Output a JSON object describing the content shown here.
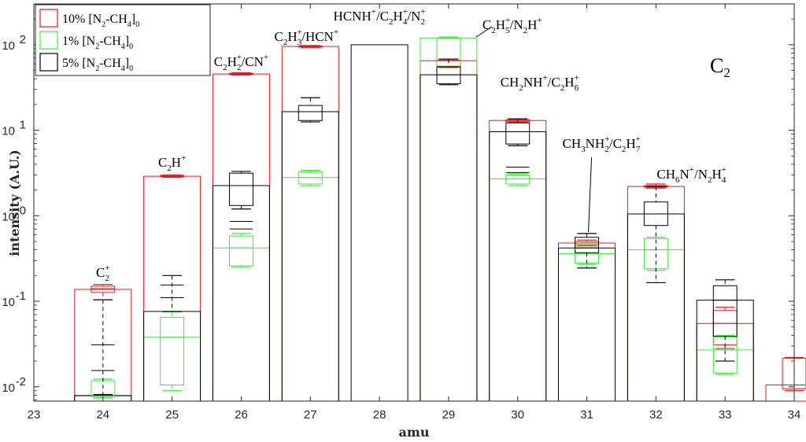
{
  "chart_data": {
    "type": "bar",
    "title": "",
    "panel_label": "C",
    "panel_label_sub": "2",
    "xlabel": "amu",
    "ylabel": "intensity (A.U.)",
    "xlim": [
      23,
      34
    ],
    "ylim": [
      0.0068,
      300
    ],
    "yscale": "log",
    "x_ticks": [
      "23",
      "24",
      "25",
      "26",
      "27",
      "28",
      "29",
      "30",
      "31",
      "32",
      "33",
      "34"
    ],
    "y_ticks": [
      {
        "value": 0.01,
        "base": "10",
        "exp": "-2"
      },
      {
        "value": 0.1,
        "base": "10",
        "exp": "-1"
      },
      {
        "value": 1,
        "base": "10",
        "exp": "0"
      },
      {
        "value": 10,
        "base": "10",
        "exp": "1"
      },
      {
        "value": 100,
        "base": "10",
        "exp": "2"
      }
    ],
    "grid": false,
    "legend_position": "top-left",
    "series": [
      {
        "name": "10% [N2-CH4]0",
        "legend": [
          {
            "t": "10% [N"
          },
          {
            "t": "2",
            "sub": true
          },
          {
            "t": "-CH"
          },
          {
            "t": "4",
            "sub": true
          },
          {
            "t": "]"
          },
          {
            "t": "0",
            "sub": true
          }
        ],
        "color": "#e8171c",
        "bars": [
          {
            "amu": 24,
            "value": 0.138,
            "box": [
              0.127,
              0.15
            ],
            "whisker": [
              0.104,
              0.157
            ],
            "median": 0.14
          },
          {
            "amu": 25,
            "value": 2.9,
            "box": [
              2.86,
              2.97
            ],
            "whisker": [
              2.82,
              3.0
            ],
            "median": 2.91
          },
          {
            "amu": 26,
            "value": 45.5,
            "box": [
              44.8,
              46.3
            ],
            "whisker": [
              44.2,
              47.0
            ],
            "median": 45.5
          },
          {
            "amu": 27,
            "value": 95.5,
            "box": [
              94.0,
              97.0
            ],
            "whisker": [
              93.0,
              98.0
            ],
            "median": 95.5
          },
          {
            "amu": 29,
            "value": 65,
            "box": [
              55,
              66
            ],
            "whisker": [
              54,
              68
            ],
            "median": 56
          },
          {
            "amu": 30,
            "value": 13.0,
            "box": [
              12.6,
              13.3
            ],
            "whisker": [
              12.4,
              13.6
            ],
            "median": 13.0
          },
          {
            "amu": 31,
            "value": 0.48,
            "box": [
              0.46,
              0.5
            ],
            "whisker": [
              0.45,
              0.52
            ],
            "median": 0.48
          },
          {
            "amu": 32,
            "value": 2.2,
            "box": [
              2.15,
              2.25
            ],
            "whisker": [
              2.1,
              2.35
            ],
            "median": 2.2
          },
          {
            "amu": 33,
            "value": 0.055,
            "box": [
              0.031,
              0.078
            ],
            "whisker": [
              0.028,
              0.085
            ],
            "median": 0.055
          },
          {
            "amu": 34,
            "value": 0.0105,
            "box": [
              0.0095,
              0.0215
            ],
            "whisker": [
              0.009,
              0.022
            ],
            "median": 0.0105
          }
        ]
      },
      {
        "name": "1% [N2-CH4]0",
        "legend": [
          {
            "t": "1% [N"
          },
          {
            "t": "2",
            "sub": true
          },
          {
            "t": "-CH"
          },
          {
            "t": "4",
            "sub": true
          },
          {
            "t": "]"
          },
          {
            "t": "0",
            "sub": true
          }
        ],
        "color": "#3ce83c",
        "bars": [
          {
            "amu": 24,
            "value": 0.0078,
            "box": [
              0.0076,
              0.0118
            ],
            "whisker": [
              0.0074,
              0.0123
            ],
            "median": 0.0078
          },
          {
            "amu": 25,
            "value": 0.038,
            "box": [
              0.0105,
              0.065
            ],
            "whisker": [
              0.009,
              0.075
            ],
            "median": 0.038
          },
          {
            "amu": 26,
            "value": 0.42,
            "box": [
              0.26,
              0.58
            ],
            "whisker": [
              0.25,
              0.62
            ],
            "median": 0.42
          },
          {
            "amu": 27,
            "value": 2.8,
            "box": [
              2.35,
              3.25
            ],
            "whisker": [
              2.25,
              3.4
            ],
            "median": 2.8
          },
          {
            "amu": 29,
            "value": 120,
            "box": [
              55,
              120
            ],
            "whisker": [
              54,
              123
            ],
            "median": 120
          },
          {
            "amu": 30,
            "value": 2.7,
            "box": [
              2.35,
              3.0
            ],
            "whisker": [
              2.25,
              3.1
            ],
            "median": 2.7
          },
          {
            "amu": 31,
            "value": 0.36,
            "box": [
              0.28,
              0.44
            ],
            "whisker": [
              0.27,
              0.46
            ],
            "median": 0.36
          },
          {
            "amu": 32,
            "value": 0.4,
            "box": [
              0.24,
              0.54
            ],
            "whisker": [
              0.23,
              0.56
            ],
            "median": 0.4
          },
          {
            "amu": 33,
            "value": 0.027,
            "box": [
              0.0145,
              0.038
            ],
            "whisker": [
              0.014,
              0.04
            ],
            "median": 0.027
          }
        ]
      },
      {
        "name": "5% [N2-CH4]0",
        "legend": [
          {
            "t": "5% [N"
          },
          {
            "t": "2",
            "sub": true
          },
          {
            "t": "-CH"
          },
          {
            "t": "4",
            "sub": true
          },
          {
            "t": "]"
          },
          {
            "t": "0",
            "sub": true
          }
        ],
        "color": "#000000",
        "bars": [
          {
            "amu": 24,
            "value": 0.0079,
            "box": null,
            "whisker": [
              0.0081,
              0.104
            ],
            "median": 0.0079,
            "dashes": [
              0.0155,
              0.031
            ]
          },
          {
            "amu": 25,
            "value": 0.076,
            "box": null,
            "whisker": [
              0.076,
              0.2
            ],
            "median": 0.076,
            "dashes": [
              0.11,
              0.155
            ]
          },
          {
            "amu": 26,
            "value": 2.25,
            "box": [
              1.32,
              3.15
            ],
            "whisker": [
              1.2,
              3.3
            ],
            "median": 2.25,
            "dashes": [
              0.7,
              0.86
            ]
          },
          {
            "amu": 27,
            "value": 16.5,
            "box": [
              13.0,
              19.5
            ],
            "whisker": [
              12.5,
              24.0
            ],
            "median": 16.5
          },
          {
            "amu": 28,
            "value": 100,
            "box": null,
            "whisker": null,
            "median": 100
          },
          {
            "amu": 29,
            "value": 44.5,
            "box": [
              35,
              55
            ],
            "whisker": [
              34,
              68
            ],
            "median": 44.5
          },
          {
            "amu": 30,
            "value": 9.6,
            "box": [
              6.9,
              12.2
            ],
            "whisker": [
              6.6,
              13.6
            ],
            "median": 9.6,
            "dashes": [
              3.2,
              3.7
            ]
          },
          {
            "amu": 31,
            "value": 0.42,
            "box": [
              0.37,
              0.56
            ],
            "whisker": [
              0.245,
              0.62
            ],
            "median": 0.42
          },
          {
            "amu": 32,
            "value": 1.05,
            "box": [
              0.77,
              1.45
            ],
            "whisker": [
              0.165,
              2.2
            ],
            "median": 1.05
          },
          {
            "amu": 33,
            "value": 0.103,
            "box": [
              0.039,
              0.152
            ],
            "whisker": [
              0.02,
              0.178
            ],
            "median": 0.103
          }
        ]
      }
    ],
    "annotations": [
      {
        "amu": 24,
        "parts": [
          {
            "t": "C"
          },
          {
            "t": "+",
            "sup": true
          },
          {
            "t": "2",
            "sub": true
          }
        ]
      },
      {
        "amu": 25,
        "parts": [
          {
            "t": "C"
          },
          {
            "t": "2",
            "sub": true
          },
          {
            "t": "H"
          },
          {
            "t": "+",
            "sup": true
          }
        ]
      },
      {
        "amu": 26,
        "parts": [
          {
            "t": "C"
          },
          {
            "t": "2",
            "sub": true
          },
          {
            "t": "H"
          },
          {
            "t": "+",
            "sup": true
          },
          {
            "t": "2",
            "sub": true
          },
          {
            "t": "/CN"
          },
          {
            "t": "+",
            "sup": true
          }
        ]
      },
      {
        "amu": 27,
        "parts": [
          {
            "t": "C"
          },
          {
            "t": "2",
            "sub": true
          },
          {
            "t": "H"
          },
          {
            "t": "+",
            "sup": true
          },
          {
            "t": "3",
            "sub": true
          },
          {
            "t": "/HCN"
          },
          {
            "t": "+",
            "sup": true
          }
        ]
      },
      {
        "amu": 28,
        "parts": [
          {
            "t": "HCNH"
          },
          {
            "t": "+",
            "sup": true
          },
          {
            "t": "/C"
          },
          {
            "t": "2",
            "sub": true
          },
          {
            "t": "H"
          },
          {
            "t": "+",
            "sup": true
          },
          {
            "t": "4",
            "sub": true
          },
          {
            "t": "/N"
          },
          {
            "t": "+",
            "sup": true
          },
          {
            "t": "2",
            "sub": true
          }
        ]
      },
      {
        "amu": 29,
        "parts": [
          {
            "t": "C"
          },
          {
            "t": "2",
            "sub": true
          },
          {
            "t": "H"
          },
          {
            "t": "+",
            "sup": true
          },
          {
            "t": "5",
            "sub": true
          },
          {
            "t": "/N"
          },
          {
            "t": "2",
            "sub": true
          },
          {
            "t": "H"
          },
          {
            "t": "+",
            "sup": true
          }
        ]
      },
      {
        "amu": 30,
        "parts": [
          {
            "t": "CH"
          },
          {
            "t": "2",
            "sub": true
          },
          {
            "t": "NH"
          },
          {
            "t": "+",
            "sup": true
          },
          {
            "t": "/C"
          },
          {
            "t": "2",
            "sub": true
          },
          {
            "t": "H"
          },
          {
            "t": "+",
            "sup": true
          },
          {
            "t": "6",
            "sub": true
          }
        ]
      },
      {
        "amu": 31,
        "parts": [
          {
            "t": "CH"
          },
          {
            "t": "3",
            "sub": true
          },
          {
            "t": "NH"
          },
          {
            "t": "+",
            "sup": true
          },
          {
            "t": "2",
            "sub": true
          },
          {
            "t": "/C"
          },
          {
            "t": "2",
            "sub": true
          },
          {
            "t": "H"
          },
          {
            "t": "+",
            "sup": true
          },
          {
            "t": "7",
            "sub": true
          }
        ]
      },
      {
        "amu": 32,
        "parts": [
          {
            "t": "CH"
          },
          {
            "t": "6",
            "sub": true
          },
          {
            "t": "N"
          },
          {
            "t": "+",
            "sup": true
          },
          {
            "t": "/N"
          },
          {
            "t": "2",
            "sub": true
          },
          {
            "t": "H"
          },
          {
            "t": "+",
            "sup": true
          },
          {
            "t": "4",
            "sub": true
          }
        ]
      }
    ]
  }
}
